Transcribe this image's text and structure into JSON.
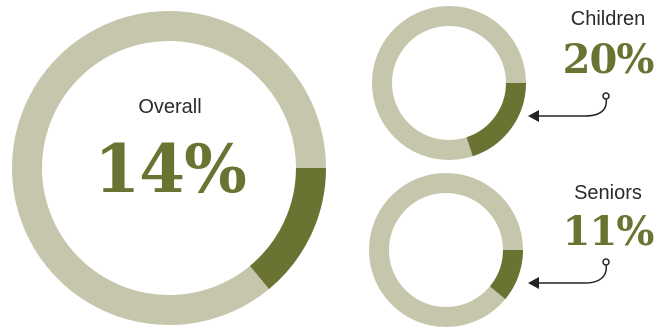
{
  "colors": {
    "track": "#c6c6ad",
    "fill": "#6b7332",
    "text": "#2b2b2b",
    "arrow": "#222222"
  },
  "chart_data": [
    {
      "type": "pie",
      "variant": "donut",
      "label": "Overall",
      "value_label": "14%",
      "value": 14
    },
    {
      "type": "pie",
      "variant": "donut",
      "label": "Children",
      "value_label": "20%",
      "value": 20
    },
    {
      "type": "pie",
      "variant": "donut",
      "label": "Seniors",
      "value_label": "11%",
      "value": 11
    }
  ]
}
